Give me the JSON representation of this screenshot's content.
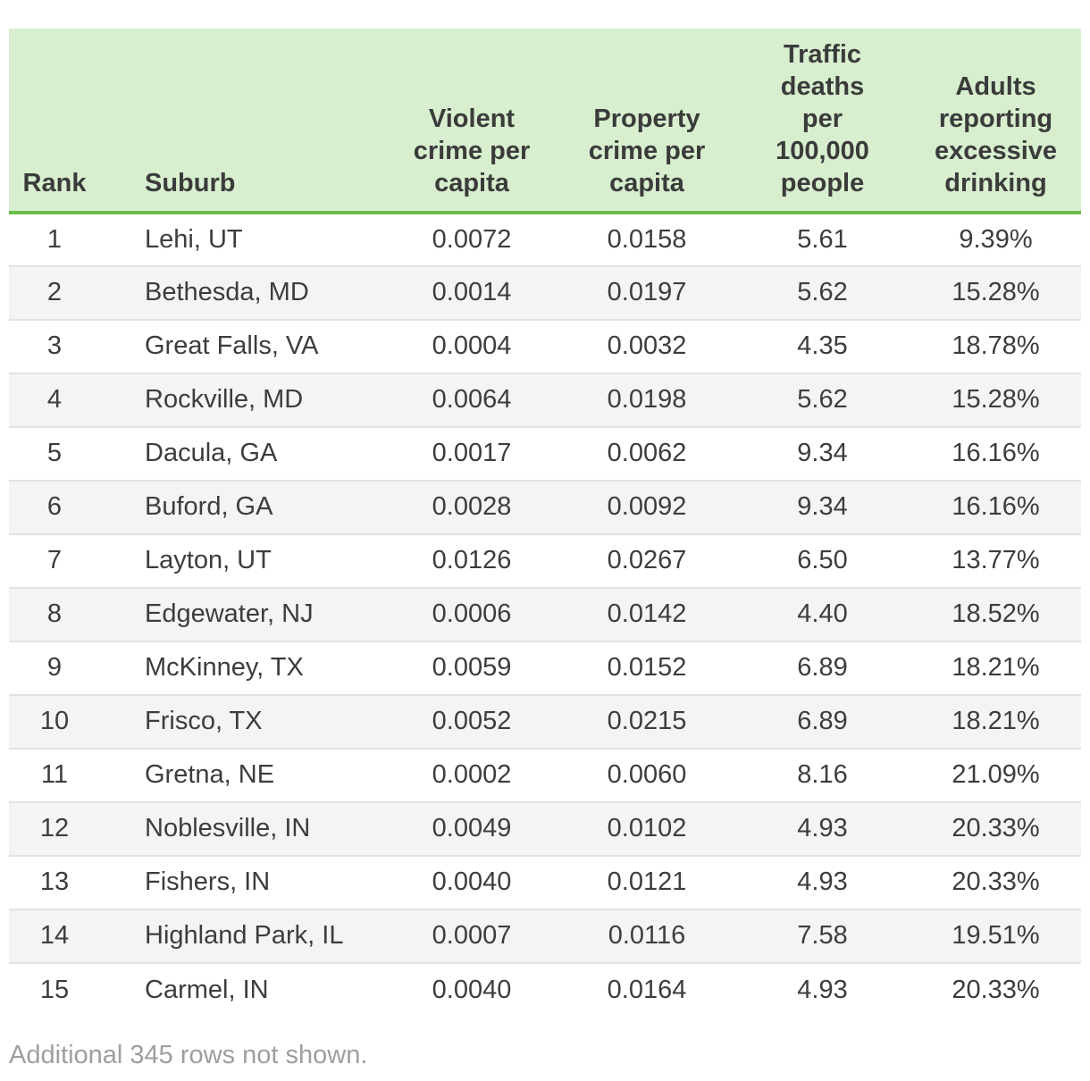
{
  "table": {
    "columns": [
      {
        "id": "rank",
        "label": "Rank"
      },
      {
        "id": "suburb",
        "label": "Suburb"
      },
      {
        "id": "violent",
        "label": "Violent\ncrime per\ncapita"
      },
      {
        "id": "property",
        "label": "Property\ncrime per\ncapita"
      },
      {
        "id": "traffic",
        "label": "Traffic\ndeaths\nper\n100,000\npeople"
      },
      {
        "id": "drinking",
        "label": "Adults\nreporting\nexcessive\ndrinking"
      }
    ],
    "rows": [
      [
        "1",
        "Lehi, UT",
        "0.0072",
        "0.0158",
        "5.61",
        "9.39%"
      ],
      [
        "2",
        "Bethesda, MD",
        "0.0014",
        "0.0197",
        "5.62",
        "15.28%"
      ],
      [
        "3",
        "Great Falls, VA",
        "0.0004",
        "0.0032",
        "4.35",
        "18.78%"
      ],
      [
        "4",
        "Rockville, MD",
        "0.0064",
        "0.0198",
        "5.62",
        "15.28%"
      ],
      [
        "5",
        "Dacula, GA",
        "0.0017",
        "0.0062",
        "9.34",
        "16.16%"
      ],
      [
        "6",
        "Buford, GA",
        "0.0028",
        "0.0092",
        "9.34",
        "16.16%"
      ],
      [
        "7",
        "Layton, UT",
        "0.0126",
        "0.0267",
        "6.50",
        "13.77%"
      ],
      [
        "8",
        "Edgewater, NJ",
        "0.0006",
        "0.0142",
        "4.40",
        "18.52%"
      ],
      [
        "9",
        "McKinney, TX",
        "0.0059",
        "0.0152",
        "6.89",
        "18.21%"
      ],
      [
        "10",
        "Frisco, TX",
        "0.0052",
        "0.0215",
        "6.89",
        "18.21%"
      ],
      [
        "11",
        "Gretna, NE",
        "0.0002",
        "0.0060",
        "8.16",
        "21.09%"
      ],
      [
        "12",
        "Noblesville, IN",
        "0.0049",
        "0.0102",
        "4.93",
        "20.33%"
      ],
      [
        "13",
        "Fishers, IN",
        "0.0040",
        "0.0121",
        "4.93",
        "20.33%"
      ],
      [
        "14",
        "Highland Park, IL",
        "0.0007",
        "0.0116",
        "7.58",
        "19.51%"
      ],
      [
        "15",
        "Carmel, IN",
        "0.0040",
        "0.0164",
        "4.93",
        "20.33%"
      ]
    ],
    "footer_note": "Additional 345 rows not shown."
  },
  "colors": {
    "header_background": "#d7efce",
    "header_underline": "#6cbe4b",
    "row_stripe": "#f4f4f4",
    "row_divider": "#e2e2e2",
    "body_text": "#3d3d3d",
    "note_text": "#9e9e9e"
  },
  "chart_data": {
    "type": "table",
    "title": "",
    "columns": [
      "Rank",
      "Suburb",
      "Violent crime per capita",
      "Property crime per capita",
      "Traffic deaths per 100,000 people",
      "Adults reporting excessive drinking"
    ],
    "rows": [
      [
        1,
        "Lehi, UT",
        0.0072,
        0.0158,
        5.61,
        "9.39%"
      ],
      [
        2,
        "Bethesda, MD",
        0.0014,
        0.0197,
        5.62,
        "15.28%"
      ],
      [
        3,
        "Great Falls, VA",
        0.0004,
        0.0032,
        4.35,
        "18.78%"
      ],
      [
        4,
        "Rockville, MD",
        0.0064,
        0.0198,
        5.62,
        "15.28%"
      ],
      [
        5,
        "Dacula, GA",
        0.0017,
        0.0062,
        9.34,
        "16.16%"
      ],
      [
        6,
        "Buford, GA",
        0.0028,
        0.0092,
        9.34,
        "16.16%"
      ],
      [
        7,
        "Layton, UT",
        0.0126,
        0.0267,
        6.5,
        "13.77%"
      ],
      [
        8,
        "Edgewater, NJ",
        0.0006,
        0.0142,
        4.4,
        "18.52%"
      ],
      [
        9,
        "McKinney, TX",
        0.0059,
        0.0152,
        6.89,
        "18.21%"
      ],
      [
        10,
        "Frisco, TX",
        0.0052,
        0.0215,
        6.89,
        "18.21%"
      ],
      [
        11,
        "Gretna, NE",
        0.0002,
        0.006,
        8.16,
        "21.09%"
      ],
      [
        12,
        "Noblesville, IN",
        0.0049,
        0.0102,
        4.93,
        "20.33%"
      ],
      [
        13,
        "Fishers, IN",
        0.004,
        0.0121,
        4.93,
        "20.33%"
      ],
      [
        14,
        "Highland Park, IL",
        0.0007,
        0.0116,
        7.58,
        "19.51%"
      ],
      [
        15,
        "Carmel, IN",
        0.004,
        0.0164,
        4.93,
        "20.33%"
      ]
    ],
    "annotations": [
      "Additional 345 rows not shown."
    ],
    "layout_hints": {
      "striped_rows": true,
      "header_fill": "#d7efce",
      "header_underline": "#6cbe4b",
      "numeric_columns_align": "center"
    }
  }
}
